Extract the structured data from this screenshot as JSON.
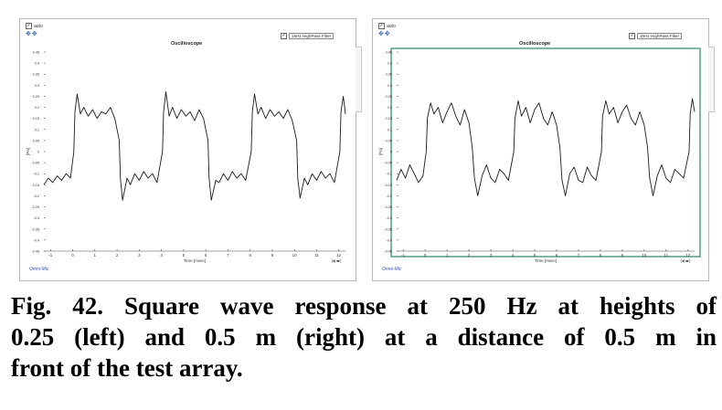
{
  "panels": [
    {
      "auto_label": "auto",
      "zoom_icons": "✥✥",
      "title": "Oscilloscope",
      "filter_label": "15Hz HighPass Filter",
      "y_unit": "[Pa]",
      "x_label": "Time [msec]",
      "omni_label": "Omni-Mic",
      "range_icon": "|◂|◂▸|"
    },
    {
      "auto_label": "auto",
      "zoom_icons": "✥✥",
      "title": "Oscilloscope",
      "filter_label": "15Hz HighPass Filter",
      "y_unit": "[Pa]",
      "x_label": "Time [msec]",
      "omni_label": "Omni-Mic",
      "range_icon": "|◂|◂▸|"
    }
  ],
  "caption": {
    "line1": "Fig. 42. Square wave response at 250 Hz at heights of",
    "line2": "0.25 (left) and 0.5 m (right) at a distance of 0.5 m in",
    "line3": "front of the test array."
  },
  "colors": {
    "trace": "#1a1a1a",
    "axis": "#444444",
    "frame_left": "#b9b9b9",
    "frame_right": "#3a8f6e"
  },
  "chart_data": [
    {
      "type": "line",
      "title": "Oscilloscope",
      "xlabel": "Time [msec]",
      "ylabel": "[Pa]",
      "xlim": [
        -1.3,
        12.3
      ],
      "ylim": [
        -0.45,
        0.45
      ],
      "x_ticks": [
        "-1",
        "0",
        "1",
        "2",
        "3",
        "4",
        "5",
        "6",
        "7",
        "8",
        "9",
        "10",
        "11",
        "12"
      ],
      "y_ticks": [
        "0.45",
        "0.4",
        "0.35",
        "0.3",
        "0.25",
        "0.2",
        "0.15",
        "0.1",
        "0.05",
        "0",
        "-0.05",
        "-0.1",
        "-0.15",
        "-0.2",
        "-0.25",
        "-0.3",
        "-0.35",
        "-0.4",
        "-0.45"
      ],
      "series": [
        {
          "x": [
            -1.3,
            -1.1,
            -0.9,
            -0.7,
            -0.5,
            -0.3,
            -0.1,
            0.05,
            0.1,
            0.2,
            0.35,
            0.5,
            0.7,
            0.9,
            1.1,
            1.3,
            1.5,
            1.7,
            1.9,
            2.1,
            2.15,
            2.25,
            2.45,
            2.6,
            2.8,
            3.0,
            3.2,
            3.4,
            3.6,
            3.8,
            4.05,
            4.1,
            4.2,
            4.35,
            4.5,
            4.7,
            4.9,
            5.1,
            5.3,
            5.5,
            5.7,
            5.9,
            6.1,
            6.15,
            6.25,
            6.45,
            6.6,
            6.8,
            7.0,
            7.2,
            7.4,
            7.6,
            7.8,
            8.05,
            8.1,
            8.2,
            8.35,
            8.5,
            8.7,
            8.9,
            9.1,
            9.3,
            9.5,
            9.7,
            9.9,
            10.1,
            10.15,
            10.25,
            10.45,
            10.6,
            10.8,
            11.0,
            11.2,
            11.4,
            11.6,
            11.8,
            12.05,
            12.1,
            12.2,
            12.3
          ],
          "y": [
            -0.15,
            -0.12,
            -0.14,
            -0.11,
            -0.13,
            -0.1,
            -0.12,
            0.0,
            0.18,
            0.26,
            0.17,
            0.2,
            0.16,
            0.19,
            0.15,
            0.18,
            0.17,
            0.2,
            0.15,
            0.05,
            -0.12,
            -0.22,
            -0.12,
            -0.15,
            -0.1,
            -0.13,
            -0.09,
            -0.12,
            -0.1,
            -0.14,
            0.0,
            0.18,
            0.27,
            0.16,
            0.2,
            0.15,
            0.19,
            0.16,
            0.18,
            0.14,
            0.19,
            0.15,
            0.05,
            -0.12,
            -0.22,
            -0.13,
            -0.14,
            -0.1,
            -0.13,
            -0.09,
            -0.12,
            -0.1,
            -0.13,
            0.0,
            0.18,
            0.26,
            0.17,
            0.2,
            0.15,
            0.19,
            0.16,
            0.18,
            0.15,
            0.19,
            0.14,
            0.05,
            -0.12,
            -0.21,
            -0.12,
            -0.15,
            -0.1,
            -0.13,
            -0.09,
            -0.12,
            -0.1,
            -0.14,
            0.0,
            0.18,
            0.25,
            0.17
          ]
        }
      ]
    },
    {
      "type": "line",
      "title": "Oscilloscope",
      "xlabel": "Time [msec]",
      "ylabel": "[Pa]",
      "xlim": [
        -1.3,
        12.3
      ],
      "ylim": [
        -0.45,
        0.45
      ],
      "x_ticks": [
        "-1",
        "0",
        "1",
        "2",
        "3",
        "4",
        "5",
        "6",
        "7",
        "8",
        "9",
        "10",
        "11",
        "12"
      ],
      "y_ticks": [
        "0.45",
        "0.4",
        "0.35",
        "0.3",
        "0.25",
        "0.2",
        "0.15",
        "0.1",
        "0.05",
        "0",
        "-0.05",
        "-0.1",
        "-0.15",
        "-0.2",
        "-0.25",
        "-0.3",
        "-0.35",
        "-0.4",
        "-0.45"
      ],
      "series": [
        {
          "x": [
            -1.3,
            -1.1,
            -0.9,
            -0.7,
            -0.5,
            -0.3,
            -0.1,
            0.05,
            0.1,
            0.25,
            0.4,
            0.6,
            0.8,
            1.0,
            1.2,
            1.4,
            1.6,
            1.8,
            2.0,
            2.15,
            2.25,
            2.4,
            2.6,
            2.8,
            3.0,
            3.2,
            3.4,
            3.6,
            3.8,
            4.05,
            4.1,
            4.25,
            4.4,
            4.6,
            4.8,
            5.0,
            5.2,
            5.4,
            5.6,
            5.8,
            6.0,
            6.15,
            6.25,
            6.4,
            6.6,
            6.8,
            7.0,
            7.2,
            7.4,
            7.6,
            7.8,
            8.05,
            8.1,
            8.25,
            8.4,
            8.6,
            8.8,
            9.0,
            9.2,
            9.4,
            9.6,
            9.8,
            10.0,
            10.15,
            10.25,
            10.4,
            10.6,
            10.8,
            11.0,
            11.2,
            11.4,
            11.6,
            11.8,
            12.05,
            12.1,
            12.2,
            12.3
          ],
          "y": [
            -0.13,
            -0.08,
            -0.12,
            -0.06,
            -0.1,
            -0.14,
            -0.11,
            0.0,
            0.15,
            0.22,
            0.17,
            0.2,
            0.13,
            0.18,
            0.22,
            0.16,
            0.12,
            0.19,
            0.13,
            0.02,
            -0.12,
            -0.2,
            -0.11,
            -0.06,
            -0.12,
            -0.14,
            -0.08,
            -0.1,
            -0.13,
            0.0,
            0.15,
            0.23,
            0.16,
            0.2,
            0.13,
            0.19,
            0.22,
            0.15,
            0.12,
            0.18,
            0.12,
            0.02,
            -0.13,
            -0.2,
            -0.1,
            -0.07,
            -0.13,
            -0.14,
            -0.07,
            -0.11,
            -0.13,
            0.0,
            0.16,
            0.23,
            0.17,
            0.2,
            0.13,
            0.18,
            0.21,
            0.15,
            0.12,
            0.18,
            0.12,
            0.02,
            -0.12,
            -0.2,
            -0.11,
            -0.06,
            -0.12,
            -0.14,
            -0.08,
            -0.1,
            -0.12,
            0.0,
            0.17,
            0.24,
            0.18
          ]
        }
      ]
    }
  ]
}
